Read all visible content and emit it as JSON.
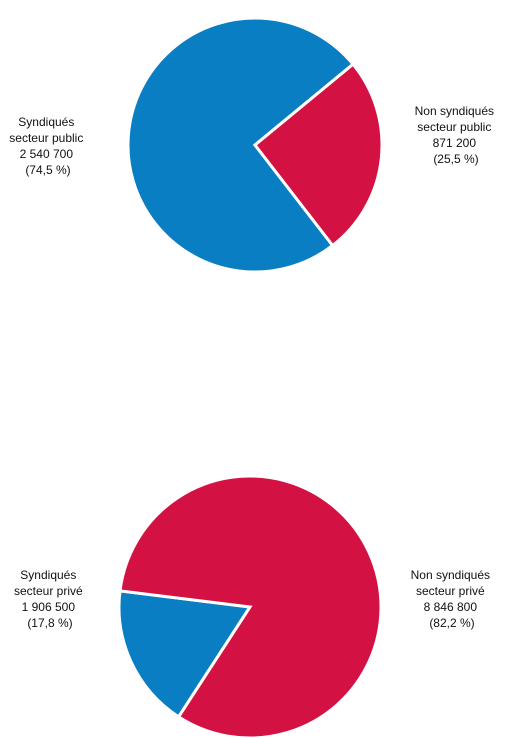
{
  "chart_data": [
    {
      "type": "pie",
      "title": "",
      "colors": {
        "syndiques": "#0A7EC2",
        "non_syndiques": "#D41143"
      },
      "slices": [
        {
          "key": "syndiques",
          "label_lines": [
            "Syndiqués",
            "secteur public",
            "2 540 700",
            "(74,5 %)"
          ],
          "value": 2540700,
          "percent": 74.5,
          "color": "#0A7EC2"
        },
        {
          "key": "non_syndiques",
          "label_lines": [
            "Non syndiqués",
            "secteur public",
            "871 200",
            "(25,5 %)"
          ],
          "value": 871200,
          "percent": 25.5,
          "color": "#D41143"
        }
      ]
    },
    {
      "type": "pie",
      "title": "",
      "colors": {
        "syndiques": "#0A7EC2",
        "non_syndiques": "#D41143"
      },
      "slices": [
        {
          "key": "syndiques",
          "label_lines": [
            "Syndiqués",
            "secteur privé",
            "1 906 500",
            "(17,8 %)"
          ],
          "value": 1906500,
          "percent": 17.8,
          "color": "#0A7EC2"
        },
        {
          "key": "non_syndiques",
          "label_lines": [
            "Non syndiqués",
            "secteur privé",
            "8 846 800",
            "(82,2 %)"
          ],
          "value": 8846800,
          "percent": 82.2,
          "color": "#D41143"
        }
      ]
    }
  ]
}
